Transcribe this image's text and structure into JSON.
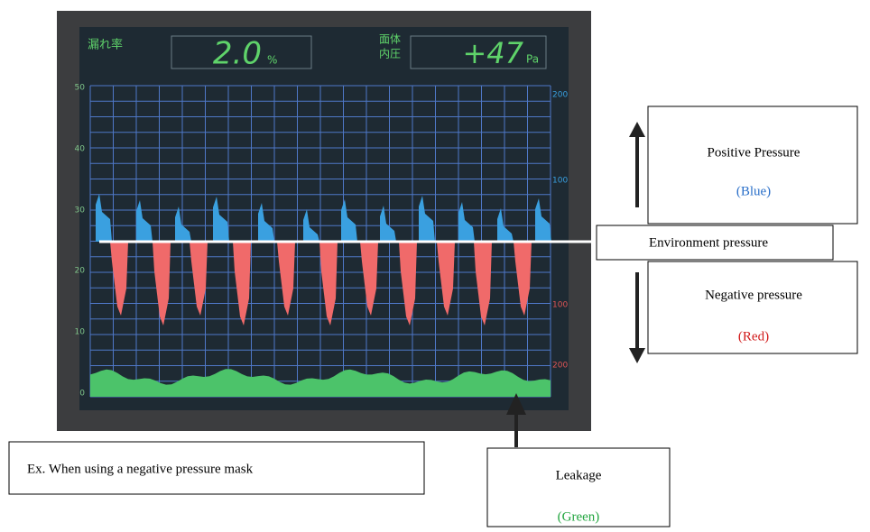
{
  "screen": {
    "leak_label": "漏れ率",
    "leak_value": "2.0",
    "leak_unit": "%",
    "pressure_label": [
      "面体",
      "内圧"
    ],
    "pressure_value": "+47",
    "pressure_unit": "Pa",
    "left_axis": [
      "50",
      "40",
      "30",
      "20",
      "10",
      "0"
    ],
    "right_axis": [
      "200",
      "100",
      "100",
      "200"
    ]
  },
  "annotations": {
    "positive": [
      "Positive Pressure",
      "(Blue)"
    ],
    "environment": "Environment pressure",
    "negative": [
      "Negative pressure",
      "(Red)"
    ],
    "example": "Ex. When using a negative pressure mask",
    "leakage": [
      "Leakage",
      "(Green)"
    ]
  }
}
